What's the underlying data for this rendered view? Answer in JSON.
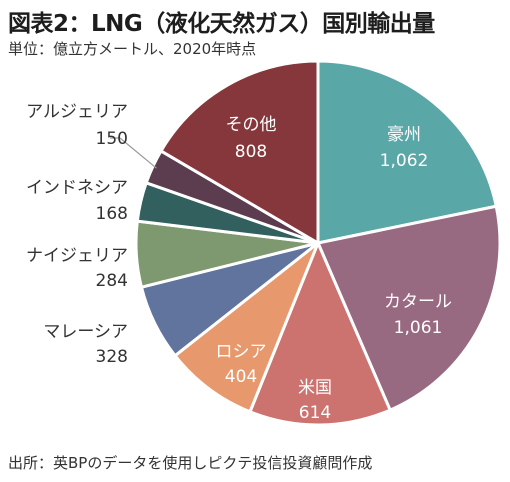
{
  "header": {
    "title": "図表2：LNG（液化天然ガス）国別輸出量",
    "subtitle": "単位：億立方メートル、2020年時点"
  },
  "footer": {
    "source": "出所：英BPのデータを使用しピクテ投信投資顧問作成"
  },
  "chart_data": {
    "type": "pie",
    "categories": [
      "豪州",
      "カタール",
      "米国",
      "ロシア",
      "マレーシア",
      "ナイジェリア",
      "インドネシア",
      "アルジェリア",
      "その他"
    ],
    "values": [
      1062,
      1061,
      614,
      404,
      328,
      284,
      168,
      150,
      808
    ],
    "value_labels": [
      "1,062",
      "1,061",
      "614",
      "404",
      "328",
      "284",
      "168",
      "150",
      "808"
    ],
    "colors": [
      "#5aa7a7",
      "#986a82",
      "#cc7370",
      "#e7996d",
      "#61749d",
      "#7e9970",
      "#31605e",
      "#5c3d50",
      "#86373b"
    ],
    "start_angle_deg": 0,
    "direction": "clockwise",
    "legend": "none"
  }
}
